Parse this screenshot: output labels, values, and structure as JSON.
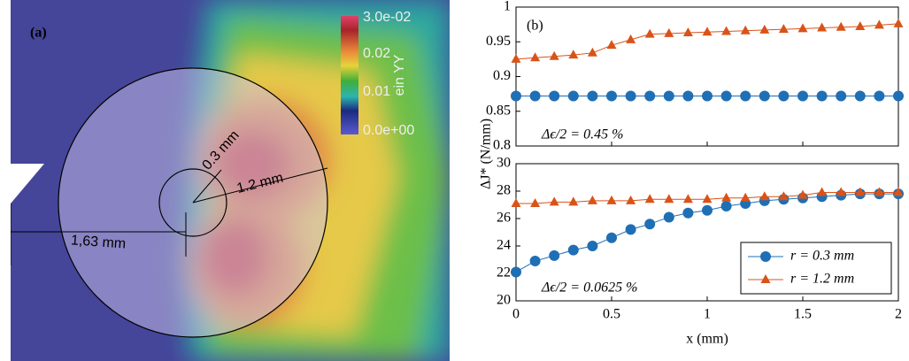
{
  "figure_a": {
    "label": "(a)",
    "colorbar_title": "ein YY",
    "colorbar_ticks": [
      "3.0e-02",
      "0.02",
      "0.01",
      "0.0e+00"
    ],
    "dimensions": [
      "0.3 mm",
      "1.2 mm",
      "1,63 mm"
    ]
  },
  "chart_data": [
    {
      "type": "line",
      "panel_label": "(b)",
      "annotation": "Δϵ/2 = 0.45 %",
      "ylabel": "ΔJ* (N/mm)",
      "x": [
        0,
        0.1,
        0.2,
        0.3,
        0.4,
        0.5,
        0.6,
        0.7,
        0.8,
        0.9,
        1,
        1.1,
        1.2,
        1.3,
        1.4,
        1.5,
        1.6,
        1.7,
        1.8,
        1.9,
        2
      ],
      "xlim": [
        0,
        2
      ],
      "xticks": [
        0,
        0.5,
        1,
        1.5,
        2
      ],
      "ylim": [
        0.8,
        1
      ],
      "yticks": [
        0.8,
        0.85,
        0.9,
        0.95,
        1
      ],
      "series": [
        {
          "color": "#1f6fb4",
          "marker": "circle",
          "values": [
            0.872,
            0.872,
            0.872,
            0.872,
            0.872,
            0.872,
            0.872,
            0.872,
            0.872,
            0.872,
            0.872,
            0.872,
            0.872,
            0.872,
            0.872,
            0.872,
            0.872,
            0.872,
            0.872,
            0.872,
            0.872
          ]
        },
        {
          "color": "#d95319",
          "marker": "triangle",
          "values": [
            0.925,
            0.927,
            0.929,
            0.931,
            0.934,
            0.945,
            0.953,
            0.961,
            0.962,
            0.963,
            0.964,
            0.965,
            0.966,
            0.967,
            0.968,
            0.969,
            0.97,
            0.971,
            0.972,
            0.974,
            0.976
          ]
        }
      ]
    },
    {
      "type": "line",
      "annotation": "Δϵ/2 = 0.0625 %",
      "xlabel": "x (mm)",
      "legend": "lower right",
      "x": [
        0,
        0.1,
        0.2,
        0.3,
        0.4,
        0.5,
        0.6,
        0.7,
        0.8,
        0.9,
        1,
        1.1,
        1.2,
        1.3,
        1.4,
        1.5,
        1.6,
        1.7,
        1.8,
        1.9,
        2
      ],
      "xlim": [
        0,
        2
      ],
      "xticks": [
        0,
        0.5,
        1,
        1.5,
        2
      ],
      "ylim": [
        20,
        30
      ],
      "yticks": [
        20,
        22,
        24,
        26,
        28,
        30
      ],
      "series": [
        {
          "name": "r = 0.3 mm",
          "color": "#1f6fb4",
          "marker": "circle",
          "values": [
            22.1,
            22.9,
            23.3,
            23.7,
            24.0,
            24.6,
            25.2,
            25.6,
            26.1,
            26.4,
            26.6,
            26.9,
            27.1,
            27.3,
            27.4,
            27.5,
            27.6,
            27.7,
            27.8,
            27.8,
            27.8
          ]
        },
        {
          "name": "r = 1.2 mm",
          "color": "#d95319",
          "marker": "triangle",
          "values": [
            27.1,
            27.1,
            27.2,
            27.2,
            27.3,
            27.3,
            27.3,
            27.4,
            27.4,
            27.4,
            27.4,
            27.5,
            27.5,
            27.6,
            27.6,
            27.7,
            27.9,
            27.9,
            27.9,
            27.9,
            27.9
          ]
        }
      ]
    }
  ]
}
